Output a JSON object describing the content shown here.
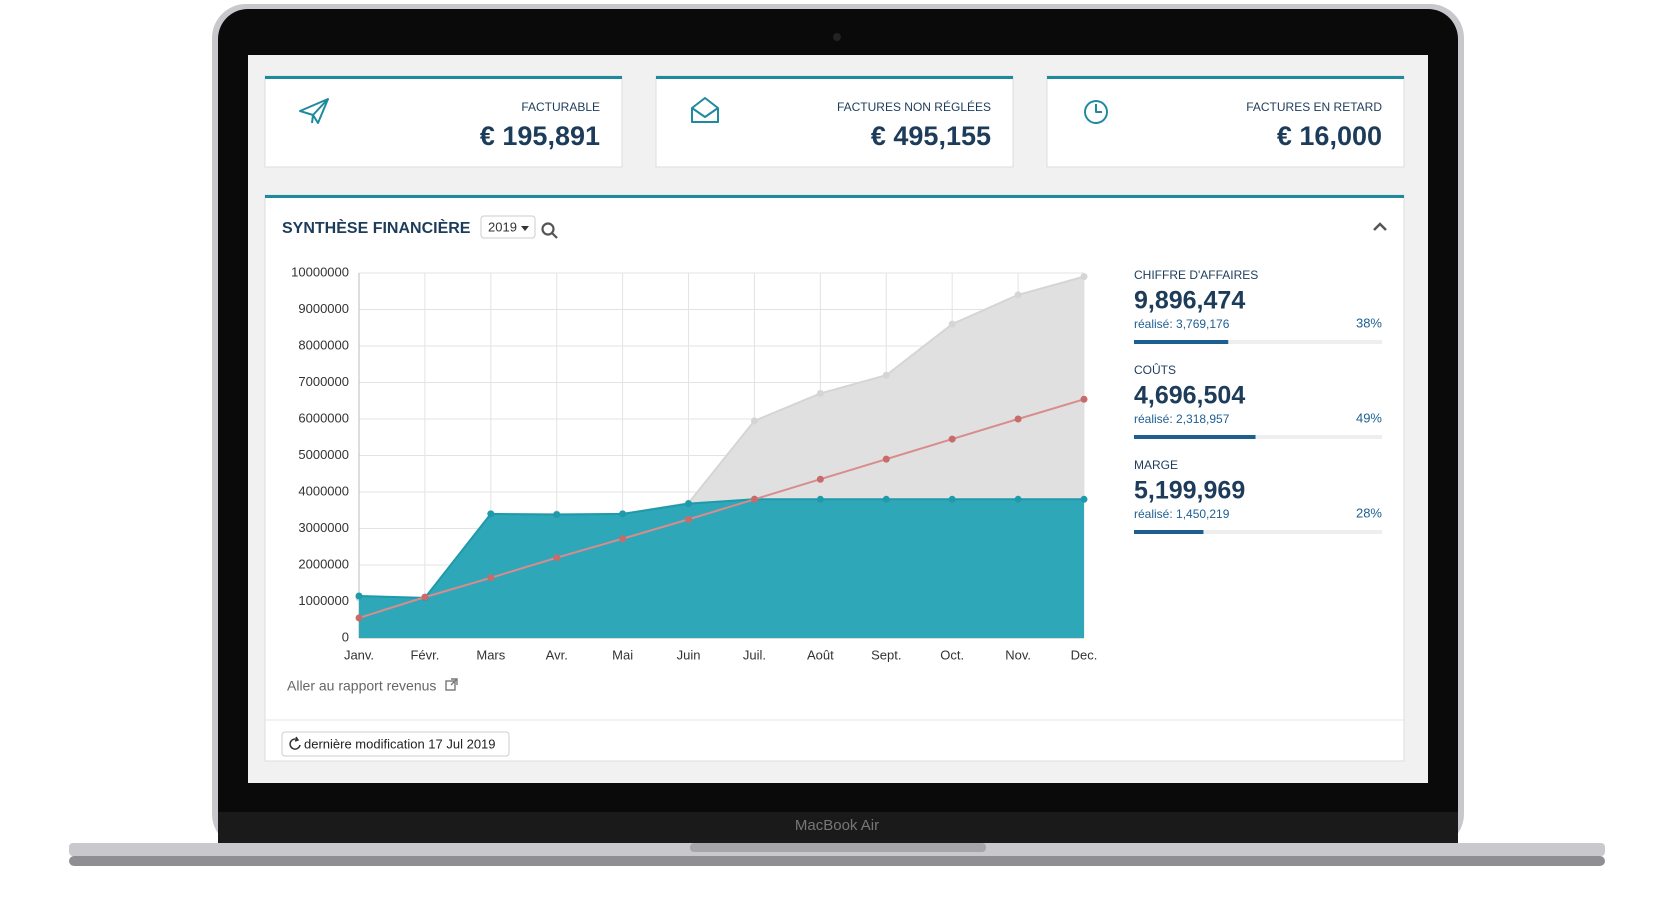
{
  "cards": [
    {
      "label": "FACTURABLE",
      "value": "€ 195,891"
    },
    {
      "label": "FACTURES NON RÉGLÉES",
      "value": "€ 495,155"
    },
    {
      "label": "FACTURES EN RETARD",
      "value": "€ 16,000"
    }
  ],
  "panel": {
    "title": "SYNTHÈSE FINANCIÈRE",
    "year": "2019",
    "report_link": "Aller au rapport revenus",
    "last_modified": "dernière modification 17 Jul 2019"
  },
  "stats": [
    {
      "label": "CHIFFRE D'AFFAIRES",
      "value": "9,896,474",
      "realised": "réalisé: 3,769,176",
      "percent": {
        "value": 38,
        "label": "38%"
      }
    },
    {
      "label": "COÛTS",
      "value": "4,696,504",
      "realised": "réalisé: 2,318,957",
      "percent": {
        "value": 49,
        "label": "49%"
      }
    },
    {
      "label": "MARGE",
      "value": "5,199,969",
      "realised": "réalisé: 1,450,219",
      "percent": {
        "value": 28,
        "label": "28%"
      }
    }
  ],
  "device_label": "MacBook Air",
  "chart_data": {
    "type": "area",
    "categories": [
      "Janv.",
      "Févr.",
      "Mars",
      "Avr.",
      "Mai",
      "Juin",
      "Juil.",
      "Août",
      "Sept.",
      "Oct.",
      "Nov.",
      "Dec."
    ],
    "series": [
      {
        "color": "#e0e0e0",
        "values": [
          1100000,
          1100000,
          3400000,
          3400000,
          3400000,
          3700000,
          5950000,
          6700000,
          7200000,
          8600000,
          9400000,
          9900000
        ]
      },
      {
        "color": "#2ea7b9",
        "values": [
          1150000,
          1100000,
          3400000,
          3380000,
          3400000,
          3680000,
          3800000,
          3800000,
          3800000,
          3800000,
          3800000,
          3800000
        ]
      },
      {
        "color": "#d98c8c",
        "line_only": true,
        "values": [
          550000,
          1120000,
          1650000,
          2200000,
          2720000,
          3250000,
          3800000,
          4350000,
          4900000,
          5450000,
          6000000,
          6540000
        ]
      }
    ],
    "ylim": [
      0,
      10000000
    ],
    "yticks": [
      0,
      1000000,
      2000000,
      3000000,
      4000000,
      5000000,
      6000000,
      7000000,
      8000000,
      9000000,
      10000000
    ],
    "grid": true
  }
}
